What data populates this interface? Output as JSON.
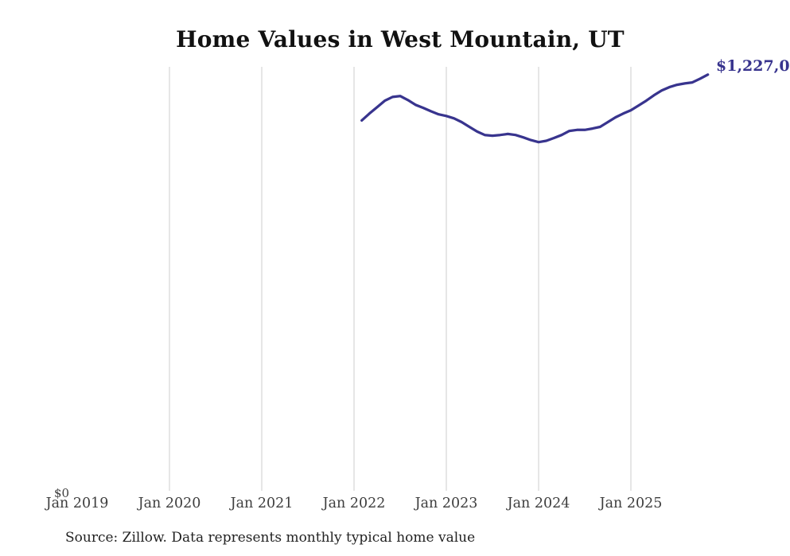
{
  "title": "Home Values in West Mountain, UT",
  "end_label": "$1,227,0",
  "source_note": "Source: Zillow. Data represents monthly typical home value",
  "y_axis": {
    "zero_label": "$0"
  },
  "colors": {
    "line": "#38348e",
    "last_value_label": "#38348e",
    "grid": "#cccccc",
    "axis_text": "#3d3d3d",
    "title_text": "#111111",
    "source_text": "#222222",
    "background": "#ffffff"
  },
  "chart_data": {
    "type": "line",
    "title": "Home Values in West Mountain, UT",
    "series_name": "Monthly typical home value (USD)",
    "x_interval": "monthly",
    "x_start": "2022-02",
    "x": [
      "2022-02",
      "2022-03",
      "2022-04",
      "2022-05",
      "2022-06",
      "2022-07",
      "2022-08",
      "2022-09",
      "2022-10",
      "2022-11",
      "2022-12",
      "2023-01",
      "2023-02",
      "2023-03",
      "2023-04",
      "2023-05",
      "2023-06",
      "2023-07",
      "2023-08",
      "2023-09",
      "2023-10",
      "2023-11",
      "2023-12",
      "2024-01",
      "2024-02",
      "2024-03",
      "2024-04",
      "2024-05",
      "2024-06",
      "2024-07",
      "2024-08",
      "2024-09",
      "2024-10",
      "2024-11",
      "2024-12",
      "2025-01",
      "2025-02",
      "2025-03",
      "2025-04",
      "2025-05",
      "2025-06",
      "2025-07",
      "2025-08",
      "2025-09",
      "2025-10",
      "2025-11"
    ],
    "values": [
      1092000,
      1112000,
      1131000,
      1150000,
      1161000,
      1164000,
      1152000,
      1138000,
      1129000,
      1119000,
      1110000,
      1105000,
      1098000,
      1087000,
      1073000,
      1059000,
      1049000,
      1047000,
      1049000,
      1052000,
      1049000,
      1042000,
      1034000,
      1028000,
      1032000,
      1040000,
      1049000,
      1061000,
      1064000,
      1064000,
      1068000,
      1073000,
      1087000,
      1101000,
      1112000,
      1122000,
      1136000,
      1150000,
      1166000,
      1180000,
      1190000,
      1197000,
      1201000,
      1204000,
      1215000,
      1227000
    ],
    "last_point_label": "$1,227,0",
    "x_ticks": [
      {
        "label": "Jan 2019",
        "month_index": 0,
        "gridline": false
      },
      {
        "label": "Jan 2020",
        "month_index": 12,
        "gridline": true
      },
      {
        "label": "Jan 2021",
        "month_index": 24,
        "gridline": true
      },
      {
        "label": "Jan 2022",
        "month_index": 36,
        "gridline": true
      },
      {
        "label": "Jan 2023",
        "month_index": 48,
        "gridline": true
      },
      {
        "label": "Jan 2024",
        "month_index": 60,
        "gridline": true
      },
      {
        "label": "Jan 2025",
        "month_index": 72,
        "gridline": true
      }
    ],
    "y_ticks": [
      {
        "label": "$0",
        "value": 0
      }
    ],
    "ylim": [
      0,
      1250000
    ],
    "grid": "vertical-only",
    "legend": "none"
  }
}
